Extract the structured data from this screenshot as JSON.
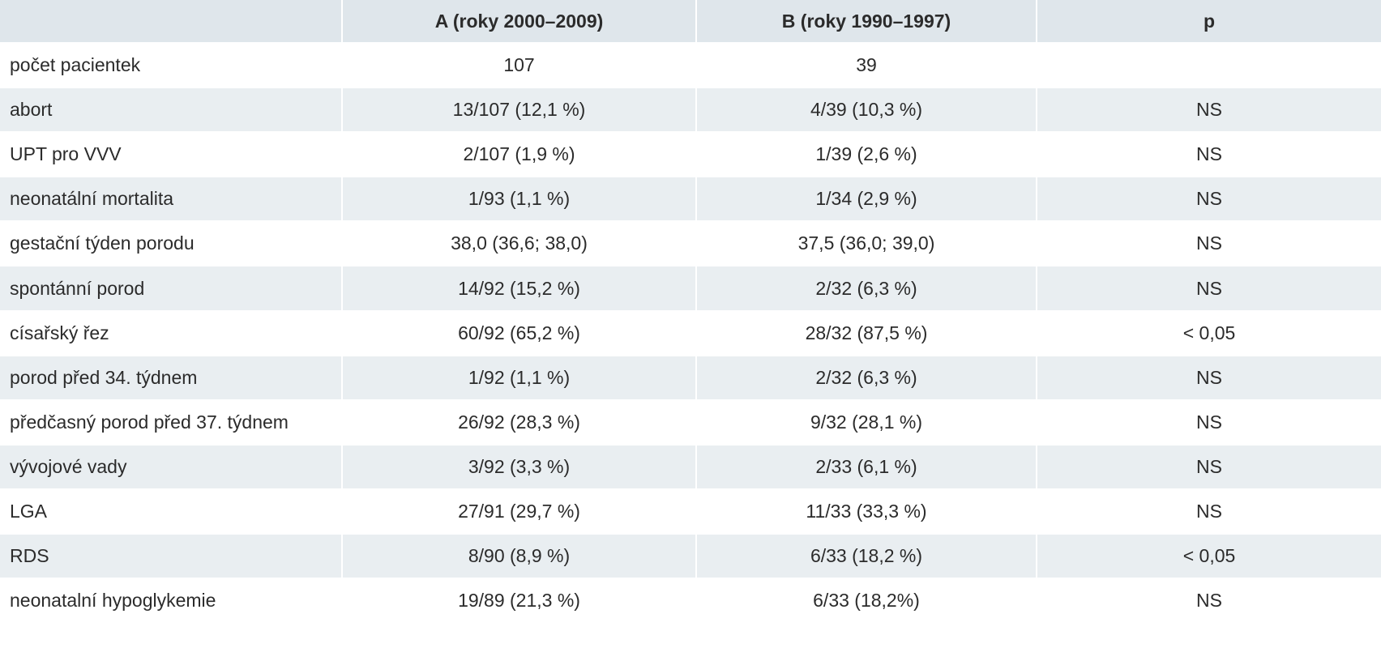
{
  "table": {
    "headers": [
      "",
      "A (roky 2000–2009)",
      "B (roky 1990–1997)",
      "p"
    ],
    "rows": [
      [
        "počet pacientek",
        "107",
        "39",
        ""
      ],
      [
        "abort",
        "13/107 (12,1 %)",
        "4/39 (10,3 %)",
        "NS"
      ],
      [
        "UPT pro VVV",
        "2/107 (1,9 %)",
        "1/39 (2,6 %)",
        "NS"
      ],
      [
        "neonatální mortalita",
        "1/93 (1,1 %)",
        "1/34 (2,9 %)",
        "NS"
      ],
      [
        "gestační týden porodu",
        "38,0 (36,6; 38,0)",
        "37,5 (36,0; 39,0)",
        "NS"
      ],
      [
        "spontánní porod",
        "14/92 (15,2 %)",
        "2/32 (6,3 %)",
        "NS"
      ],
      [
        "císařský řez",
        "60/92 (65,2 %)",
        "28/32 (87,5 %)",
        "< 0,05"
      ],
      [
        "porod před 34. týdnem",
        "1/92 (1,1 %)",
        "2/32 (6,3 %)",
        "NS"
      ],
      [
        "předčasný porod před 37. týdnem",
        "26/92 (28,3 %)",
        "9/32 (28,1 %)",
        "NS"
      ],
      [
        "vývojové vady",
        "3/92 (3,3 %)",
        "2/33 (6,1 %)",
        "NS"
      ],
      [
        "LGA",
        "27/91 (29,7 %)",
        "11/33 (33,3 %)",
        "NS"
      ],
      [
        "RDS",
        "8/90 (8,9 %)",
        "6/33 (18,2 %)",
        "< 0,05"
      ],
      [
        "neonatalní hypoglykemie",
        "19/89 (21,3 %)",
        "6/33 (18,2%)",
        "NS"
      ]
    ]
  },
  "colors": {
    "header_bg": "#dfe6eb",
    "row_alt_bg": "#e9eef1",
    "text": "#2b2b2b"
  }
}
